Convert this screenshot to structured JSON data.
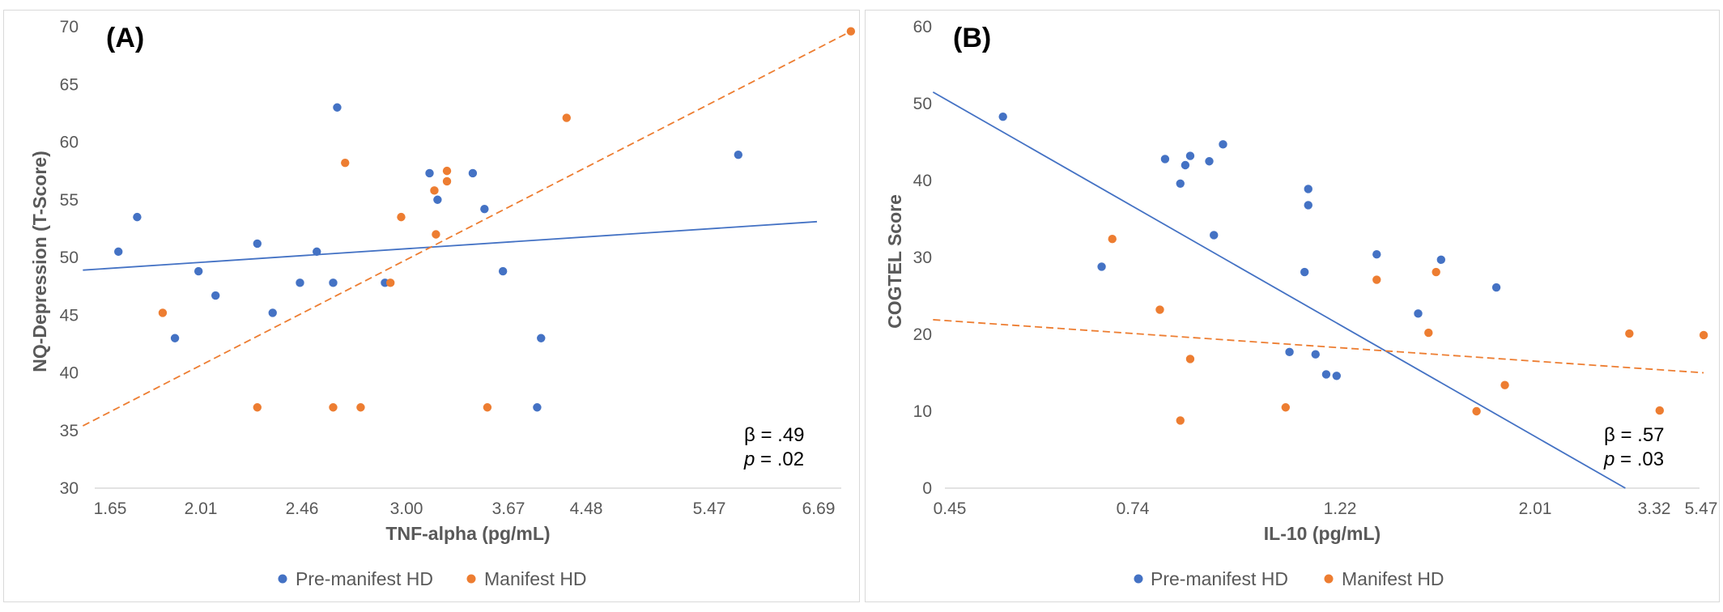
{
  "chart_data": [
    {
      "type": "scatter",
      "panel_label": "(A)",
      "xlabel": "TNF-alpha (pg/mL)",
      "ylabel": "NQ-Depression (T-Score)",
      "x_ticks": [
        "1.65",
        "2.01",
        "2.46",
        "3.00",
        "3.67",
        "4.48",
        "5.47",
        "6.69"
      ],
      "ylim": [
        30,
        70
      ],
      "y_ticks": [
        30,
        35,
        40,
        45,
        50,
        55,
        60,
        65,
        70
      ],
      "grid": false,
      "legend_position": "bottom",
      "annotation": {
        "beta": "β = .49",
        "p_label": "p",
        "p_value": " = .02"
      },
      "series": [
        {
          "name": "Pre-manifest HD",
          "color": "#4472c4",
          "points": [
            [
              1.68,
              50.5
            ],
            [
              1.75,
              53.5
            ],
            [
              1.9,
              43.0
            ],
            [
              2.0,
              48.8
            ],
            [
              2.07,
              46.7
            ],
            [
              2.25,
              51.2
            ],
            [
              2.32,
              45.2
            ],
            [
              2.45,
              47.8
            ],
            [
              2.53,
              50.5
            ],
            [
              2.61,
              47.8
            ],
            [
              2.63,
              63.0
            ],
            [
              2.88,
              47.8
            ],
            [
              3.14,
              57.3
            ],
            [
              3.19,
              55.0
            ],
            [
              3.42,
              57.3
            ],
            [
              3.5,
              54.2
            ],
            [
              3.63,
              48.8
            ],
            [
              3.95,
              37.0
            ],
            [
              3.99,
              43.0
            ],
            [
              5.77,
              58.9
            ]
          ],
          "trend": {
            "style": "solid",
            "from": [
              1.555,
              48.9
            ],
            "to": [
              6.67,
              53.1
            ]
          }
        },
        {
          "name": "Manifest HD",
          "color": "#ed7d31",
          "points": [
            [
              1.85,
              45.2
            ],
            [
              2.25,
              37.0
            ],
            [
              2.61,
              37.0
            ],
            [
              2.67,
              58.2
            ],
            [
              2.75,
              37.0
            ],
            [
              2.91,
              47.8
            ],
            [
              2.97,
              53.5
            ],
            [
              3.17,
              55.8
            ],
            [
              3.18,
              52.0
            ],
            [
              3.25,
              56.6
            ],
            [
              3.25,
              57.5
            ],
            [
              3.52,
              37.0
            ],
            [
              4.26,
              62.1
            ],
            [
              7.1,
              69.6
            ]
          ],
          "trend": {
            "style": "dashed",
            "from": [
              1.555,
              35.4
            ],
            "to": [
              7.1,
              69.6
            ]
          }
        }
      ]
    },
    {
      "type": "scatter",
      "panel_label": "(B)",
      "xlabel": "IL-10 (pg/mL)",
      "ylabel": "COGTEL Score",
      "x_ticks": [
        "0.45",
        "0.74",
        "1.22",
        "2.01",
        "3.32",
        "5.47"
      ],
      "ylim": [
        0,
        60
      ],
      "y_ticks": [
        0,
        10,
        20,
        30,
        40,
        50,
        60
      ],
      "grid": false,
      "legend_position": "bottom",
      "annotation": {
        "beta": "β = .57",
        "p_label": "p",
        "p_value": " = .03"
      },
      "series": [
        {
          "name": "Pre-manifest HD",
          "color": "#4472c4",
          "points": [
            [
              0.52,
              48.3
            ],
            [
              0.68,
              28.8
            ],
            [
              0.8,
              42.8
            ],
            [
              0.83,
              39.6
            ],
            [
              0.84,
              42.0
            ],
            [
              0.85,
              43.2
            ],
            [
              0.89,
              42.5
            ],
            [
              0.9,
              32.9
            ],
            [
              0.92,
              44.7
            ],
            [
              1.08,
              17.7
            ],
            [
              1.12,
              28.1
            ],
            [
              1.13,
              38.9
            ],
            [
              1.13,
              36.8
            ],
            [
              1.15,
              17.4
            ],
            [
              1.18,
              14.8
            ],
            [
              1.21,
              14.6
            ],
            [
              1.34,
              30.4
            ],
            [
              1.49,
              22.7
            ],
            [
              1.58,
              29.7
            ],
            [
              1.82,
              26.1
            ]
          ],
          "trend": {
            "style": "solid",
            "from": [
              0.43,
              51.5
            ],
            "to": [
              2.94,
              0
            ]
          }
        },
        {
          "name": "Manifest HD",
          "color": "#ed7d31",
          "points": [
            [
              0.7,
              32.4
            ],
            [
              0.79,
              23.2
            ],
            [
              0.83,
              8.8
            ],
            [
              0.85,
              16.8
            ],
            [
              1.07,
              10.5
            ],
            [
              1.34,
              27.1
            ],
            [
              1.53,
              20.2
            ],
            [
              1.56,
              28.1
            ],
            [
              1.73,
              10.0
            ],
            [
              1.86,
              13.4
            ],
            [
              2.99,
              20.1
            ],
            [
              3.52,
              10.1
            ],
            [
              5.62,
              19.9
            ]
          ],
          "trend": {
            "style": "dashed",
            "from": [
              0.43,
              21.9
            ],
            "to": [
              5.62,
              15.0
            ]
          }
        }
      ]
    }
  ]
}
